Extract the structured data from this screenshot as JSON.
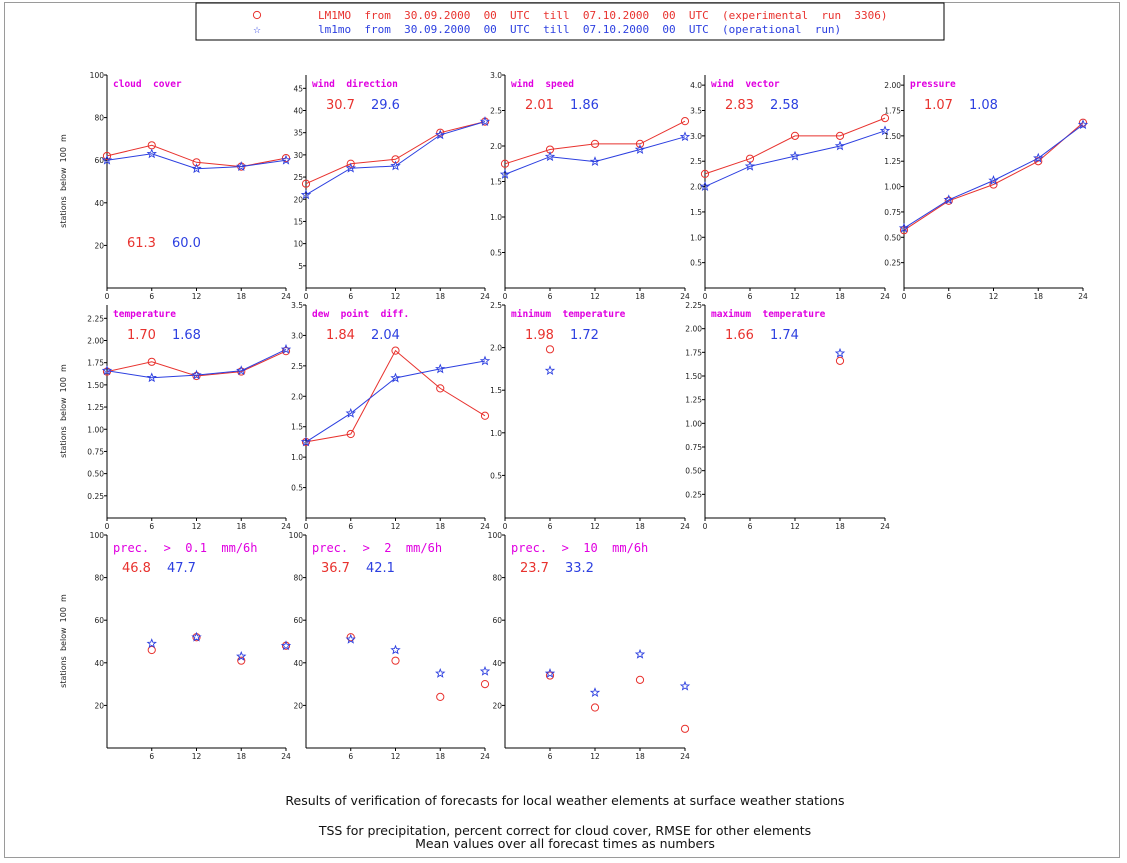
{
  "colors": {
    "exp": "#e8322e",
    "op": "#2c3fe0",
    "title": "#e000e0",
    "axis": "#000000"
  },
  "legend": {
    "exp_label": "LM1MO  from  30.09.2000  00  UTC  till  07.10.2000  00  UTC  (experimental  run  3306)",
    "op_label": "lm1mo  from  30.09.2000  00  UTC  till  07.10.2000  00  UTC  (operational  run)"
  },
  "ylabel_text": "stations  below  100  m",
  "captions": {
    "line1": "Results of verification of forecasts for local weather elements at surface weather stations",
    "line2": "TSS for precipitation, percent correct for cloud cover,  RMSE for other elements",
    "line3": "Mean values over all forecast times as numbers"
  },
  "chart_data": [
    {
      "id": "cloud",
      "type": "line",
      "title": "cloud  cover",
      "ylim": [
        0,
        100
      ],
      "yticks": [
        20,
        40,
        60,
        80,
        100
      ],
      "yticklabels": [
        "20",
        "40",
        "60",
        "80",
        "100"
      ],
      "x": [
        0,
        6,
        12,
        18,
        24
      ],
      "xticks": [
        0,
        6,
        12,
        18,
        24
      ],
      "series": [
        {
          "key": "exp",
          "values": [
            62,
            67,
            59,
            57,
            61
          ]
        },
        {
          "key": "op",
          "values": [
            60,
            63,
            56,
            57,
            60
          ]
        }
      ],
      "means": [
        "61.3",
        "60.0"
      ],
      "mean_pos": "bottom"
    },
    {
      "id": "wdir",
      "type": "line",
      "title": "wind  direction",
      "ylim": [
        0,
        48
      ],
      "yticks": [
        5,
        10,
        15,
        20,
        25,
        30,
        35,
        40,
        45
      ],
      "yticklabels": [
        "5",
        "10",
        "15",
        "20",
        "25",
        "30",
        "35",
        "40",
        "45"
      ],
      "x": [
        0,
        6,
        12,
        18,
        24
      ],
      "xticks": [
        0,
        6,
        12,
        18,
        24
      ],
      "series": [
        {
          "key": "exp",
          "values": [
            23.5,
            28,
            29,
            35,
            37.5
          ]
        },
        {
          "key": "op",
          "values": [
            21,
            27,
            27.5,
            34.5,
            37.5
          ]
        }
      ],
      "means": [
        "30.7",
        "29.6"
      ],
      "mean_pos": "top"
    },
    {
      "id": "wspd",
      "type": "line",
      "title": "wind  speed",
      "ylim": [
        0,
        3.0
      ],
      "yticks": [
        0.5,
        1.0,
        1.5,
        2.0,
        2.5,
        3.0
      ],
      "yticklabels": [
        "0.5",
        "1.0",
        "1.5",
        "2.0",
        "2.5",
        "3.0"
      ],
      "x": [
        0,
        6,
        12,
        18,
        24
      ],
      "xticks": [
        0,
        6,
        12,
        18,
        24
      ],
      "series": [
        {
          "key": "exp",
          "values": [
            1.75,
            1.95,
            2.03,
            2.03,
            2.35
          ]
        },
        {
          "key": "op",
          "values": [
            1.6,
            1.85,
            1.78,
            1.95,
            2.13
          ]
        }
      ],
      "means": [
        "2.01",
        "1.86"
      ],
      "mean_pos": "top"
    },
    {
      "id": "wvec",
      "type": "line",
      "title": "wind  vector",
      "ylim": [
        0,
        4.2
      ],
      "yticks": [
        0.5,
        1.0,
        1.5,
        2.0,
        2.5,
        3.0,
        3.5,
        4.0
      ],
      "yticklabels": [
        "0.5",
        "1.0",
        "1.5",
        "2.0",
        "2.5",
        "3.0",
        "3.5",
        "4.0"
      ],
      "x": [
        0,
        6,
        12,
        18,
        24
      ],
      "xticks": [
        0,
        6,
        12,
        18,
        24
      ],
      "series": [
        {
          "key": "exp",
          "values": [
            2.25,
            2.55,
            3.0,
            3.0,
            3.35
          ]
        },
        {
          "key": "op",
          "values": [
            2.0,
            2.4,
            2.6,
            2.8,
            3.1
          ]
        }
      ],
      "means": [
        "2.83",
        "2.58"
      ],
      "mean_pos": "top"
    },
    {
      "id": "pres",
      "type": "line",
      "title": "pressure",
      "ylim": [
        0,
        2.1
      ],
      "yticks": [
        0.25,
        0.5,
        0.75,
        1.0,
        1.25,
        1.5,
        1.75,
        2.0
      ],
      "yticklabels": [
        "0.25",
        "0.50",
        "0.75",
        "1.00",
        "1.25",
        "1.50",
        "1.75",
        "2.00"
      ],
      "x": [
        0,
        6,
        12,
        18,
        24
      ],
      "xticks": [
        0,
        6,
        12,
        18,
        24
      ],
      "series": [
        {
          "key": "exp",
          "values": [
            0.57,
            0.86,
            1.02,
            1.25,
            1.63
          ]
        },
        {
          "key": "op",
          "values": [
            0.59,
            0.87,
            1.06,
            1.28,
            1.61
          ]
        }
      ],
      "means": [
        "1.07",
        "1.08"
      ],
      "mean_pos": "top"
    },
    {
      "id": "temp",
      "type": "line",
      "title": "temperature",
      "ylim": [
        0,
        2.4
      ],
      "yticks": [
        0.25,
        0.5,
        0.75,
        1.0,
        1.25,
        1.5,
        1.75,
        2.0,
        2.25
      ],
      "yticklabels": [
        "0.25",
        "0.50",
        "0.75",
        "1.00",
        "1.25",
        "1.50",
        "1.75",
        "2.00",
        "2.25"
      ],
      "x": [
        0,
        6,
        12,
        18,
        24
      ],
      "xticks": [
        0,
        6,
        12,
        18,
        24
      ],
      "series": [
        {
          "key": "exp",
          "values": [
            1.65,
            1.76,
            1.6,
            1.65,
            1.88
          ]
        },
        {
          "key": "op",
          "values": [
            1.66,
            1.58,
            1.61,
            1.66,
            1.9
          ]
        }
      ],
      "means": [
        "1.70",
        "1.68"
      ],
      "mean_pos": "top"
    },
    {
      "id": "dewp",
      "type": "line",
      "title": "dew  point  diff.",
      "ylim": [
        0,
        3.5
      ],
      "yticks": [
        0.5,
        1.0,
        1.5,
        2.0,
        2.5,
        3.0,
        3.5
      ],
      "yticklabels": [
        "0.5",
        "1.0",
        "1.5",
        "2.0",
        "2.5",
        "3.0",
        "3.5"
      ],
      "x": [
        0,
        6,
        12,
        18,
        24
      ],
      "xticks": [
        0,
        6,
        12,
        18,
        24
      ],
      "series": [
        {
          "key": "exp",
          "values": [
            1.25,
            1.38,
            2.75,
            2.13,
            1.68
          ]
        },
        {
          "key": "op",
          "values": [
            1.25,
            1.72,
            2.3,
            2.45,
            2.58
          ]
        }
      ],
      "means": [
        "1.84",
        "2.04"
      ],
      "mean_pos": "top"
    },
    {
      "id": "tmin",
      "type": "scatter",
      "title": "minimum  temperature",
      "ylim": [
        0,
        2.5
      ],
      "yticks": [
        0.5,
        1.0,
        1.5,
        2.0,
        2.5
      ],
      "yticklabels": [
        "0.5",
        "1.0",
        "1.5",
        "2.0",
        "2.5"
      ],
      "x": [
        6
      ],
      "xticks": [
        0,
        6,
        12,
        18,
        24
      ],
      "series": [
        {
          "key": "exp",
          "values": [
            1.98
          ]
        },
        {
          "key": "op",
          "values": [
            1.73
          ]
        }
      ],
      "means": [
        "1.98",
        "1.72"
      ],
      "mean_pos": "top"
    },
    {
      "id": "tmax",
      "type": "scatter",
      "title": "maximum  temperature",
      "ylim": [
        0,
        2.25
      ],
      "yticks": [
        0.25,
        0.5,
        0.75,
        1.0,
        1.25,
        1.5,
        1.75,
        2.0,
        2.25
      ],
      "yticklabels": [
        "0.25",
        "0.50",
        "0.75",
        "1.00",
        "1.25",
        "1.50",
        "1.75",
        "2.00",
        "2.25"
      ],
      "x": [
        18
      ],
      "xticks": [
        0,
        6,
        12,
        18,
        24
      ],
      "series": [
        {
          "key": "exp",
          "values": [
            1.66
          ]
        },
        {
          "key": "op",
          "values": [
            1.74
          ]
        }
      ],
      "means": [
        "1.66",
        "1.74"
      ],
      "mean_pos": "top"
    },
    {
      "id": "pr01",
      "type": "scatter",
      "title": "prec.  >  0.1  mm/6h",
      "ylim": [
        0,
        100
      ],
      "yticks": [
        20,
        40,
        60,
        80,
        100
      ],
      "yticklabels": [
        "20",
        "40",
        "60",
        "80",
        "100"
      ],
      "x": [
        6,
        12,
        18,
        24
      ],
      "xticks": [
        6,
        12,
        18,
        24
      ],
      "series": [
        {
          "key": "exp",
          "values": [
            46,
            52,
            41,
            48
          ]
        },
        {
          "key": "op",
          "values": [
            49,
            52,
            43,
            48
          ]
        }
      ],
      "means": [
        "46.8",
        "47.7"
      ],
      "mean_pos": "top"
    },
    {
      "id": "pr2",
      "type": "scatter",
      "title": "prec.  >  2  mm/6h",
      "ylim": [
        0,
        100
      ],
      "yticks": [
        20,
        40,
        60,
        80,
        100
      ],
      "yticklabels": [
        "20",
        "40",
        "60",
        "80",
        "100"
      ],
      "x": [
        6,
        12,
        18,
        24
      ],
      "xticks": [
        6,
        12,
        18,
        24
      ],
      "series": [
        {
          "key": "exp",
          "values": [
            52,
            41,
            24,
            30
          ]
        },
        {
          "key": "op",
          "values": [
            51,
            46,
            35,
            36
          ]
        }
      ],
      "means": [
        "36.7",
        "42.1"
      ],
      "mean_pos": "top"
    },
    {
      "id": "pr10",
      "type": "scatter",
      "title": "prec.  >  10  mm/6h",
      "ylim": [
        0,
        100
      ],
      "yticks": [
        20,
        40,
        60,
        80,
        100
      ],
      "yticklabels": [
        "20",
        "40",
        "60",
        "80",
        "100"
      ],
      "x": [
        6,
        12,
        18,
        24
      ],
      "xticks": [
        6,
        12,
        18,
        24
      ],
      "series": [
        {
          "key": "exp",
          "values": [
            34,
            19,
            32,
            9
          ]
        },
        {
          "key": "op",
          "values": [
            35,
            26,
            44,
            29
          ]
        }
      ],
      "means": [
        "23.7",
        "33.2"
      ],
      "mean_pos": "top"
    }
  ]
}
